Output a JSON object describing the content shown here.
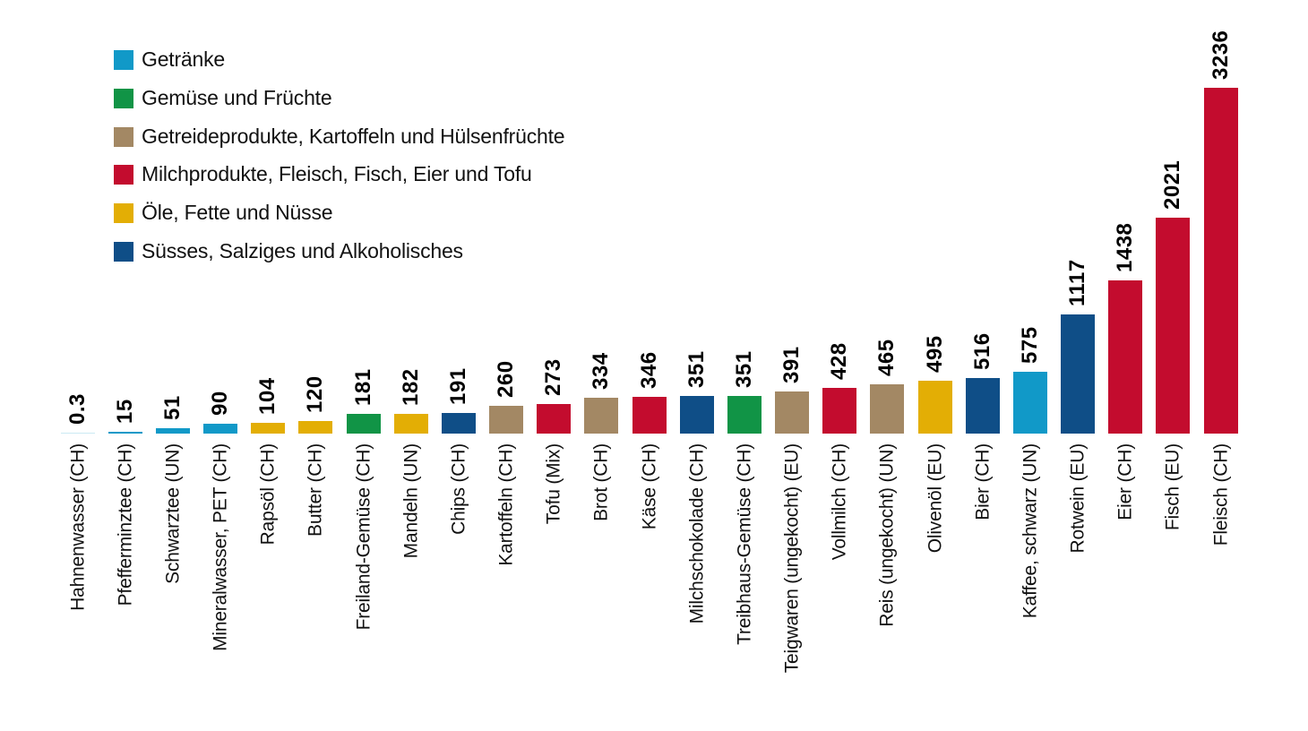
{
  "chart_data": {
    "type": "bar",
    "title": "",
    "xlabel": "",
    "ylabel": "",
    "ylim": [
      0,
      3300
    ],
    "grid": false,
    "axis_lines": false,
    "legend_position": "top-left",
    "bar_value_labels_rotated_90": true,
    "category_labels_rotated_90": true,
    "legend": [
      {
        "label": "Getränke",
        "color": "#1199c8"
      },
      {
        "label": "Gemüse und Früchte",
        "color": "#119446"
      },
      {
        "label": "Getreideprodukte, Kartoffeln und Hülsenfrüchte",
        "color": "#a38864"
      },
      {
        "label": "Milchprodukte, Fleisch, Fisch, Eier und Tofu",
        "color": "#c30c2e"
      },
      {
        "label": "Öle, Fette und Nüsse",
        "color": "#e3ae05"
      },
      {
        "label": "Süsses, Salziges und Alkoholisches",
        "color": "#0f4e87"
      }
    ],
    "bars": [
      {
        "label": "Hahnenwasser (CH)",
        "value": 0.3,
        "display": "0.3",
        "category": "Getränke"
      },
      {
        "label": "Pfefferminztee (CH)",
        "value": 15,
        "display": "15",
        "category": "Getränke"
      },
      {
        "label": "Schwarztee (UN)",
        "value": 51,
        "display": "51",
        "category": "Getränke"
      },
      {
        "label": "Mineralwasser, PET (CH)",
        "value": 90,
        "display": "90",
        "category": "Getränke"
      },
      {
        "label": "Rapsöl (CH)",
        "value": 104,
        "display": "104",
        "category": "Öle, Fette und Nüsse"
      },
      {
        "label": "Butter (CH)",
        "value": 120,
        "display": "120",
        "category": "Öle, Fette und Nüsse"
      },
      {
        "label": "Freiland-Gemüse (CH)",
        "value": 181,
        "display": "181",
        "category": "Gemüse und Früchte"
      },
      {
        "label": "Mandeln (UN)",
        "value": 182,
        "display": "182",
        "category": "Öle, Fette und Nüsse"
      },
      {
        "label": "Chips (CH)",
        "value": 191,
        "display": "191",
        "category": "Süsses, Salziges und Alkoholisches"
      },
      {
        "label": "Kartoffeln (CH)",
        "value": 260,
        "display": "260",
        "category": "Getreideprodukte, Kartoffeln und Hülsenfrüchte"
      },
      {
        "label": "Tofu (Mix)",
        "value": 273,
        "display": "273",
        "category": "Milchprodukte, Fleisch, Fisch, Eier und Tofu"
      },
      {
        "label": "Brot (CH)",
        "value": 334,
        "display": "334",
        "category": "Getreideprodukte, Kartoffeln und Hülsenfrüchte"
      },
      {
        "label": "Käse (CH)",
        "value": 346,
        "display": "346",
        "category": "Milchprodukte, Fleisch, Fisch, Eier und Tofu"
      },
      {
        "label": "Milchschokolade (CH)",
        "value": 351,
        "display": "351",
        "category": "Süsses, Salziges und Alkoholisches"
      },
      {
        "label": "Treibhaus-Gemüse (CH)",
        "value": 351,
        "display": "351",
        "category": "Gemüse und Früchte"
      },
      {
        "label": "Teigwaren (ungekocht) (EU)",
        "value": 391,
        "display": "391",
        "category": "Getreideprodukte, Kartoffeln und Hülsenfrüchte"
      },
      {
        "label": "Vollmilch (CH)",
        "value": 428,
        "display": "428",
        "category": "Milchprodukte, Fleisch, Fisch, Eier und Tofu"
      },
      {
        "label": "Reis (ungekocht) (UN)",
        "value": 465,
        "display": "465",
        "category": "Getreideprodukte, Kartoffeln und Hülsenfrüchte"
      },
      {
        "label": "Olivenöl (EU)",
        "value": 495,
        "display": "495",
        "category": "Öle, Fette und Nüsse"
      },
      {
        "label": "Bier (CH)",
        "value": 516,
        "display": "516",
        "category": "Süsses, Salziges und Alkoholisches"
      },
      {
        "label": "Kaffee, schwarz (UN)",
        "value": 575,
        "display": "575",
        "category": "Getränke"
      },
      {
        "label": "Rotwein (EU)",
        "value": 1117,
        "display": "1117",
        "category": "Süsses, Salziges und Alkoholisches"
      },
      {
        "label": "Eier (CH)",
        "value": 1438,
        "display": "1438",
        "category": "Milchprodukte, Fleisch, Fisch, Eier und Tofu"
      },
      {
        "label": "Fisch (EU)",
        "value": 2021,
        "display": "2021",
        "category": "Milchprodukte, Fleisch, Fisch, Eier und Tofu"
      },
      {
        "label": "Fleisch (CH)",
        "value": 3236,
        "display": "3236",
        "category": "Milchprodukte, Fleisch, Fisch, Eier und Tofu"
      }
    ]
  }
}
